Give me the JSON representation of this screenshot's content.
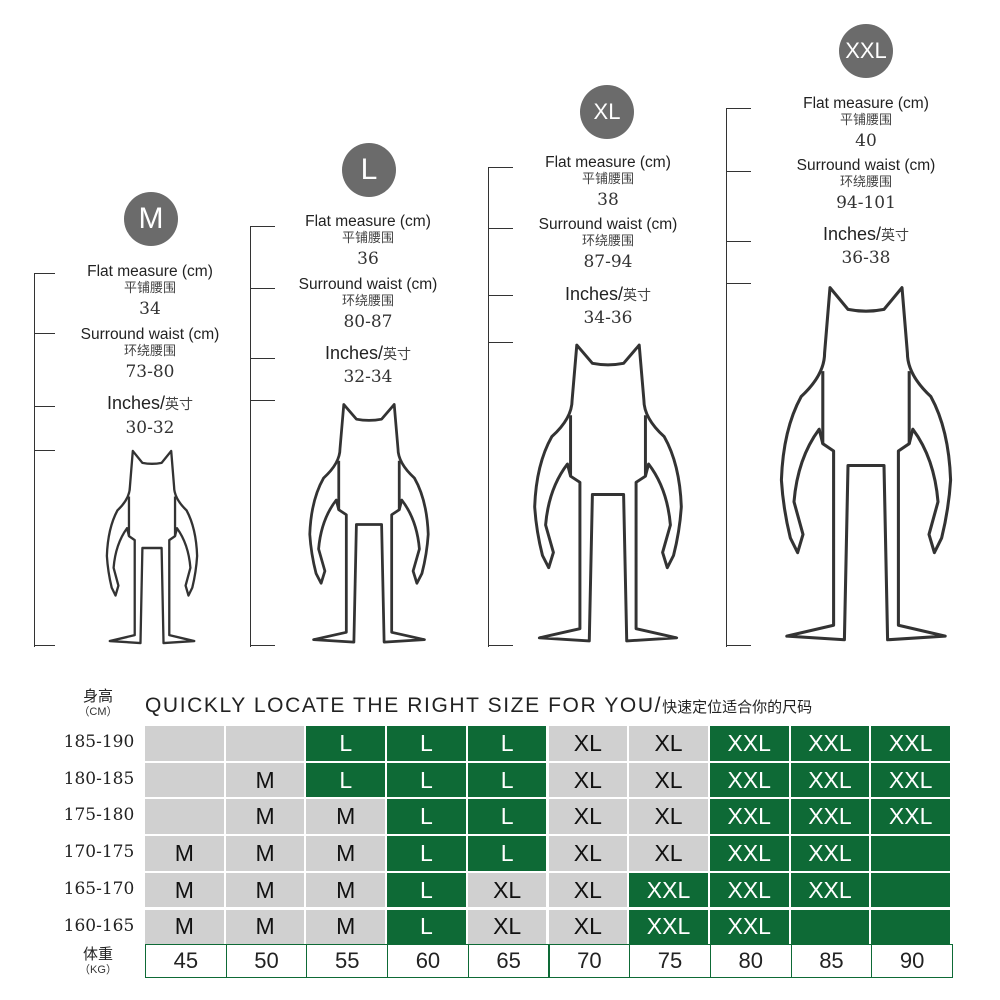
{
  "sizes": [
    {
      "badge": "M",
      "flat_label": "Flat measure (cm)",
      "flat_label_zh": "平铺腰围",
      "flat_value": "34",
      "surround_label": "Surround waist (cm)",
      "surround_label_zh": "环绕腰围",
      "surround_value": "73-80",
      "inches_label": "Inches/",
      "inches_label_zh": "英寸",
      "inches_value": "30-32"
    },
    {
      "badge": "L",
      "flat_label": "Flat measure (cm)",
      "flat_label_zh": "平铺腰围",
      "flat_value": "36",
      "surround_label": "Surround waist (cm)",
      "surround_label_zh": "环绕腰围",
      "surround_value": "80-87",
      "inches_label": "Inches/",
      "inches_label_zh": "英寸",
      "inches_value": "32-34"
    },
    {
      "badge": "XL",
      "flat_label": "Flat measure (cm)",
      "flat_label_zh": "平铺腰围",
      "flat_value": "38",
      "surround_label": "Surround waist (cm)",
      "surround_label_zh": "环绕腰围",
      "surround_value": "87-94",
      "inches_label": "Inches/",
      "inches_label_zh": "英寸",
      "inches_value": "34-36"
    },
    {
      "badge": "XXL",
      "flat_label": "Flat measure (cm)",
      "flat_label_zh": "平铺腰围",
      "flat_value": "40",
      "surround_label": "Surround waist (cm)",
      "surround_label_zh": "环绕腰围",
      "surround_value": "94-101",
      "inches_label": "Inches/",
      "inches_label_zh": "英寸",
      "inches_value": "36-38"
    }
  ],
  "table": {
    "title": "QUICKLY LOCATE THE RIGHT SIZE FOR YOU/",
    "title_zh": "快速定位适合你的尺码",
    "height_axis_zh": "身高",
    "height_axis_unit": "（CM）",
    "weight_axis_zh": "体重",
    "weight_axis_unit": "（KG）",
    "weights": [
      "45",
      "50",
      "55",
      "60",
      "65",
      "70",
      "75",
      "80",
      "85",
      "90"
    ],
    "rows": [
      {
        "height": "185-190",
        "cells": [
          "",
          "",
          "L",
          "L",
          "L",
          "XL",
          "XL",
          "XXL",
          "XXL",
          "XXL"
        ]
      },
      {
        "height": "180-185",
        "cells": [
          "",
          "M",
          "L",
          "L",
          "L",
          "XL",
          "XL",
          "XXL",
          "XXL",
          "XXL"
        ]
      },
      {
        "height": "175-180",
        "cells": [
          "",
          "M",
          "M",
          "L",
          "L",
          "XL",
          "XL",
          "XXL",
          "XXL",
          "XXL"
        ]
      },
      {
        "height": "170-175",
        "cells": [
          "M",
          "M",
          "M",
          "L",
          "L",
          "XL",
          "XL",
          "XXL",
          "XXL",
          ""
        ]
      },
      {
        "height": "165-170",
        "cells": [
          "M",
          "M",
          "M",
          "L",
          "XL",
          "XL",
          "XXL",
          "XXL",
          "XXL",
          ""
        ]
      },
      {
        "height": "160-165",
        "cells": [
          "M",
          "M",
          "M",
          "L",
          "XL",
          "XL",
          "XXL",
          "XXL",
          "",
          ""
        ]
      }
    ],
    "colors": {
      "gray": "#d0d0d0",
      "green": "#0e6a36"
    }
  }
}
